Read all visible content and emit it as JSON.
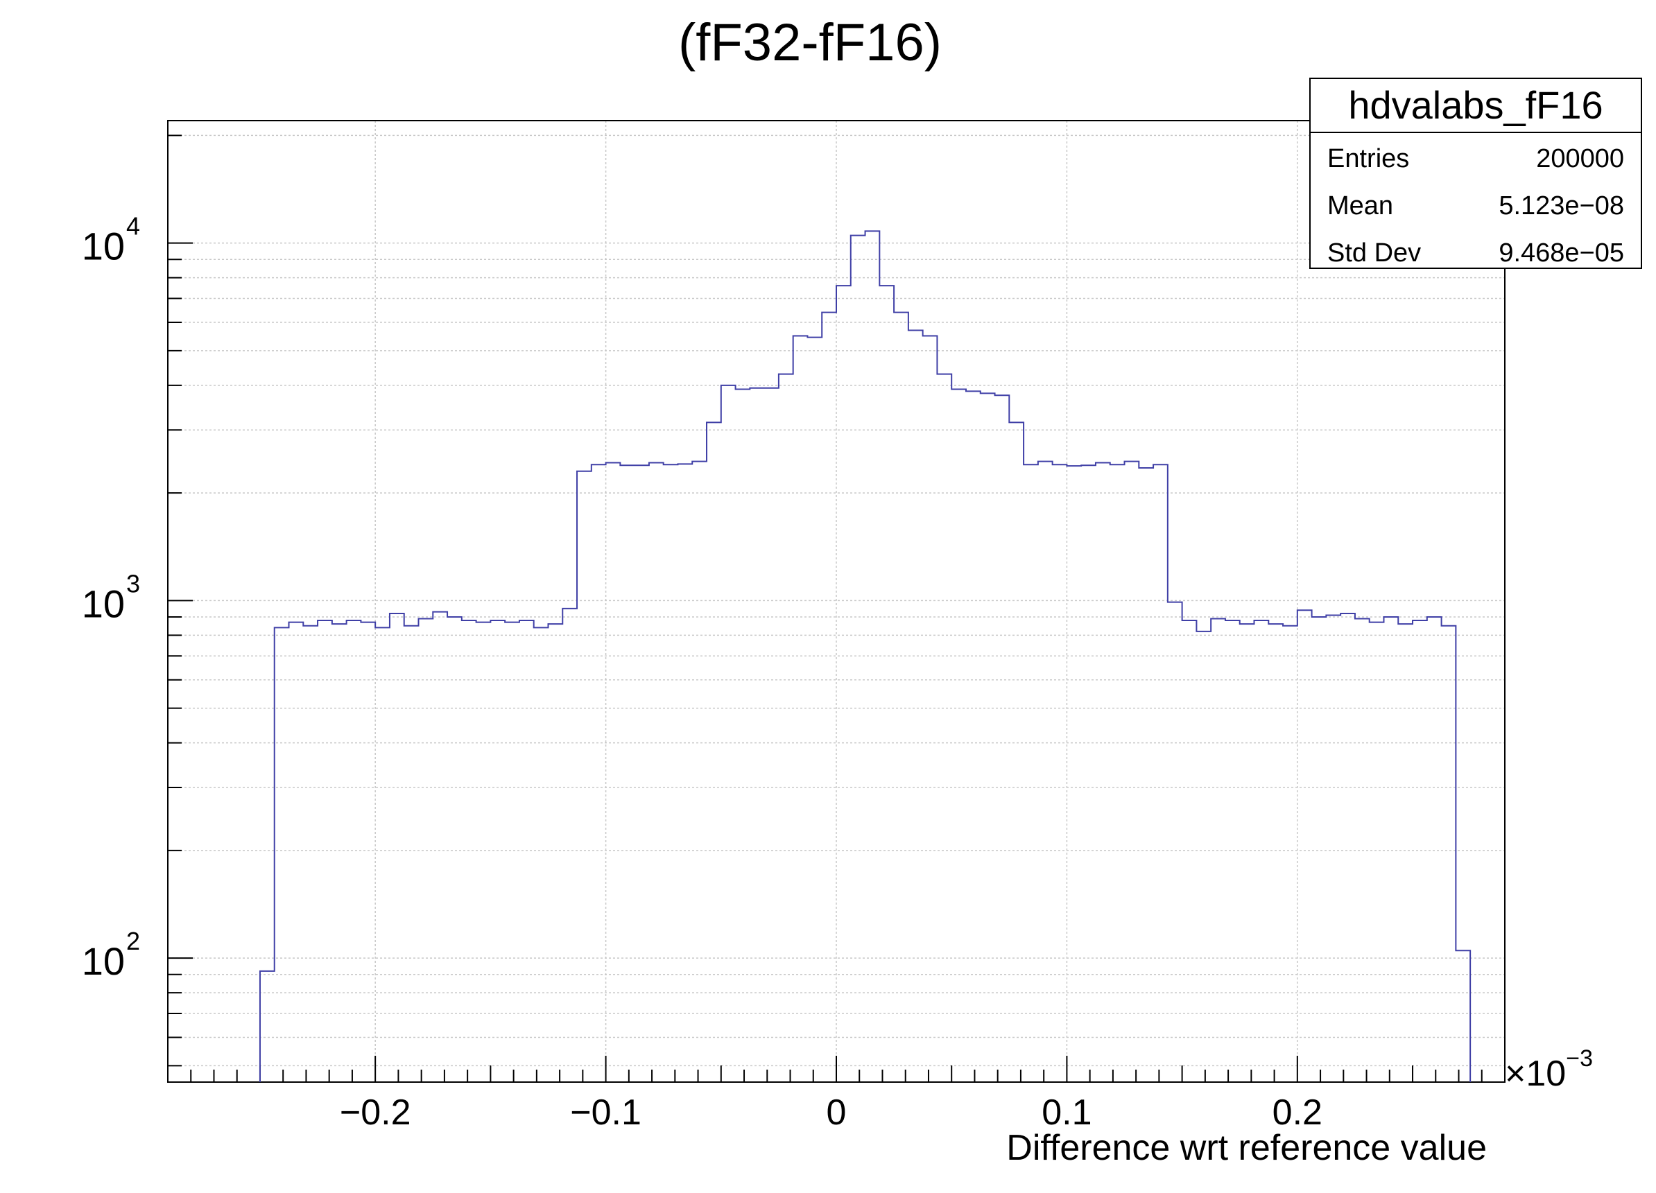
{
  "title": "(fF32-fF16)",
  "stats": {
    "name": "hdvalabs_fF16",
    "rows": [
      {
        "label": "Entries",
        "value": "200000"
      },
      {
        "label": "Mean",
        "value": "5.123e−08"
      },
      {
        "label": "Std Dev",
        "value": "9.468e−05"
      }
    ]
  },
  "chart_data": {
    "type": "bar",
    "histogram_style": "step",
    "title": "(fF32-fF16)",
    "xlabel": "Difference wrt reference value",
    "x_multiplier": {
      "base": "×10",
      "exponent": "−3"
    },
    "ylabel": "",
    "xlim": [
      -0.29,
      0.29
    ],
    "ylim": [
      45,
      22000
    ],
    "y_scale": "log",
    "grid": true,
    "legend": "top-right",
    "line_color": "#3f3fa6",
    "x_ticks": [
      -0.2,
      -0.1,
      0,
      0.1,
      0.2
    ],
    "x_tick_labels": [
      "−0.2",
      "−0.1",
      "0",
      "0.1",
      "0.2"
    ],
    "y_tick_labels": [
      {
        "base": "10",
        "exp": "2"
      },
      {
        "base": "10",
        "exp": "3"
      },
      {
        "base": "10",
        "exp": "4"
      }
    ],
    "bin_start": -0.25,
    "bin_width": 0.00625,
    "values": [
      92,
      840,
      870,
      850,
      880,
      860,
      880,
      870,
      840,
      920,
      850,
      890,
      930,
      900,
      880,
      870,
      880,
      870,
      880,
      840,
      860,
      950,
      2300,
      2400,
      2430,
      2390,
      2390,
      2430,
      2400,
      2410,
      2450,
      3150,
      4000,
      3900,
      3930,
      3930,
      4300,
      5500,
      5450,
      6400,
      7600,
      10500,
      10800,
      7600,
      6400,
      5700,
      5500,
      4300,
      3900,
      3850,
      3800,
      3750,
      3150,
      2400,
      2450,
      2400,
      2380,
      2390,
      2430,
      2400,
      2450,
      2350,
      2400,
      990,
      880,
      820,
      890,
      880,
      860,
      880,
      860,
      850,
      940,
      900,
      910,
      920,
      890,
      870,
      900,
      860,
      880,
      900,
      850,
      105
    ]
  }
}
